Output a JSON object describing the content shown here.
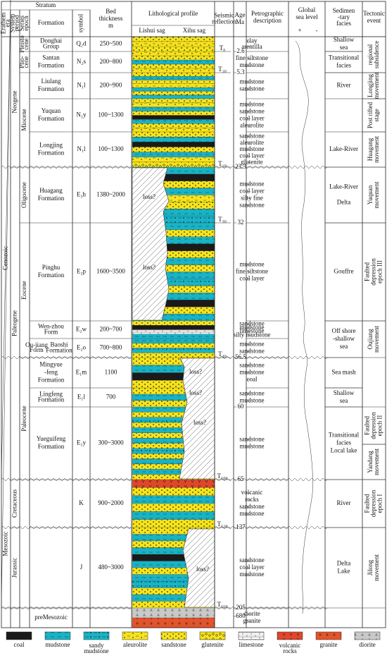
{
  "header": {
    "stratum": "Stratum",
    "era": [
      "Erathem",
      "era"
    ],
    "system": [
      "System",
      "period"
    ],
    "series": [
      "Series",
      "epoch"
    ],
    "formation": "Formation",
    "symbol": "symbol",
    "thickness": [
      "Bed",
      "thickness",
      "m"
    ],
    "profile": "Lithological profile",
    "lishui": "Lishui sag",
    "xihu": "Xihu sag",
    "seismic": [
      "Seismic",
      "reflection"
    ],
    "age": [
      "Age",
      "Ma"
    ],
    "description": [
      "Petrographic",
      "description"
    ],
    "sea_level": [
      "Global",
      "sea level"
    ],
    "plus": "+",
    "minus": "-",
    "facies": [
      "Sedimen",
      "-tary",
      "facies"
    ],
    "tectonic": [
      "Tectonic",
      "event"
    ]
  },
  "eras": [
    "Cenozoic",
    "Mesozoic"
  ],
  "systems": [
    "Neogene",
    "Paleogene",
    "Cretaceous",
    "Jurassic"
  ],
  "series": [
    [
      "Pleisto",
      "cene"
    ],
    [
      "Plio-",
      "cene"
    ],
    [
      "Miocene"
    ],
    [
      "Oligocene"
    ],
    [
      "Eocene"
    ],
    [
      "Paleocene"
    ]
  ],
  "formations": [
    {
      "name": [
        "Donghai",
        "Group"
      ],
      "symbol": "Q₂d",
      "thickness": "250~500",
      "description": [
        "clay",
        "arentilla"
      ]
    },
    {
      "name": [
        "Santan",
        "Formation"
      ],
      "symbol": "N₂s",
      "thickness": "200~800",
      "description": [
        "fine siltstone",
        "mudstone"
      ]
    },
    {
      "name": [
        "Liulang",
        "Formation"
      ],
      "symbol": "N₁l",
      "thickness": "200~900",
      "description": [
        "mudstone",
        "sandstone"
      ]
    },
    {
      "name": [
        "Yuquan",
        "Formation"
      ],
      "symbol": "N₁y",
      "thickness": "100~1300",
      "description": [
        "mudstone",
        "sandstone",
        "coal layer",
        "aleurolite"
      ]
    },
    {
      "name": [
        "Longjing",
        "Formation"
      ],
      "symbol": "N₁l",
      "thickness": "100~1300",
      "description": [
        "sandstone",
        "aleurolite",
        "mudstone",
        "coal layer",
        "glutenite"
      ]
    },
    {
      "name": [
        "Huagang",
        "Formation"
      ],
      "symbol": "E₃h",
      "thickness": "1380~2000",
      "description": [
        "mudstone",
        "coal layer",
        "silty fine",
        "sandstone"
      ]
    },
    {
      "name": [
        "Pinghu",
        "Formation"
      ],
      "symbol": "E₂p",
      "thickness": "1600~3500",
      "description": [
        "mudstone",
        "fine siltstone",
        "coal layer"
      ]
    },
    {
      "name": [
        "Wen-zhou",
        "Form"
      ],
      "symbol": "E₂w",
      "thickness": "200~700",
      "description": [
        "sandstone",
        "mudstone",
        "limestone",
        "silty mudstone"
      ]
    },
    {
      "name": [
        "Ou-jiang",
        "Form"
      ],
      "alt": [
        "Baoshi",
        "Formation"
      ],
      "symbol": "E₂o",
      "thickness": "700~800",
      "description": [
        "mudstone",
        "sandstone"
      ]
    },
    {
      "name": [
        "Mingyue",
        "-feng",
        "Formation"
      ],
      "symbol": "E₁m",
      "thickness": "1100",
      "description": [
        "sandstone",
        "mudstone",
        "coal"
      ]
    },
    {
      "name": [
        "Lingfeng",
        "Formation"
      ],
      "symbol": "E₁l",
      "thickness": "700",
      "description": [
        "sandstone",
        "mudstone"
      ]
    },
    {
      "name": [
        "Yueguifeng",
        "Formation"
      ],
      "symbol": "E₁y",
      "thickness": "300~3000",
      "description": [
        "sandstone",
        "mudstone"
      ]
    },
    {
      "symbol": "K",
      "thickness": "900~2000",
      "description": [
        "volcanic",
        "rocks",
        "sandstone",
        "mudstone"
      ]
    },
    {
      "symbol": "J",
      "thickness": "480~3000",
      "description": [
        "sandstone",
        "coal layer",
        "mudstone"
      ]
    },
    {
      "name": [
        "preMesozoic"
      ],
      "description": [
        "diorite",
        "granite"
      ]
    }
  ],
  "loss": "loss?",
  "seismic": [
    "T₀",
    "T₂₀",
    "T₂₀",
    "T₃₀",
    "T₄₀",
    "T₁₀₀",
    "T₁₂₀",
    "T₁₆₀"
  ],
  "ages": [
    "2.6",
    "5.3",
    "23.3",
    "32",
    "56.5",
    "60",
    "65",
    "137",
    "205",
    "680"
  ],
  "facies": [
    [
      "Shallow",
      "sea"
    ],
    [
      "Transitional",
      "facies"
    ],
    [
      "River"
    ],
    [
      "Lake-River"
    ],
    [
      "Lake-River",
      "",
      "Delta"
    ],
    [
      "Gouffre"
    ],
    [
      "Off shore",
      "-shallow",
      "sea"
    ],
    [
      "Sea mash"
    ],
    [
      "Shallow",
      "sea"
    ],
    [
      "Transitional",
      "facies",
      "Local lake"
    ],
    [
      "River"
    ],
    [
      "Delta",
      "Lake"
    ]
  ],
  "tectonic": [
    [
      "regional",
      "subsidence"
    ],
    [
      "Longjing",
      "movement"
    ],
    [
      "Post rifted",
      "stage"
    ],
    [
      "Huagang",
      "movement"
    ],
    [
      "Yuquan",
      "movement"
    ],
    [
      "Faulted",
      "depression",
      "epoch III"
    ],
    [
      "Oujiang",
      "movement"
    ],
    [
      "Faulted",
      "depression",
      "epoch II"
    ],
    [
      "Yandang",
      "movement"
    ],
    [
      "Faulted",
      "depression",
      "epoch I"
    ],
    [
      "Jilong",
      "movement"
    ]
  ],
  "legend": [
    [
      "coal"
    ],
    [
      "mudstone"
    ],
    [
      "sandy",
      "mudstone"
    ],
    [
      "aleurolite"
    ],
    [
      "sandstone"
    ],
    [
      "glutenite"
    ],
    [
      "limestone"
    ],
    [
      "volcanic",
      "rocks"
    ],
    [
      "granite"
    ],
    [
      "diorite"
    ]
  ]
}
